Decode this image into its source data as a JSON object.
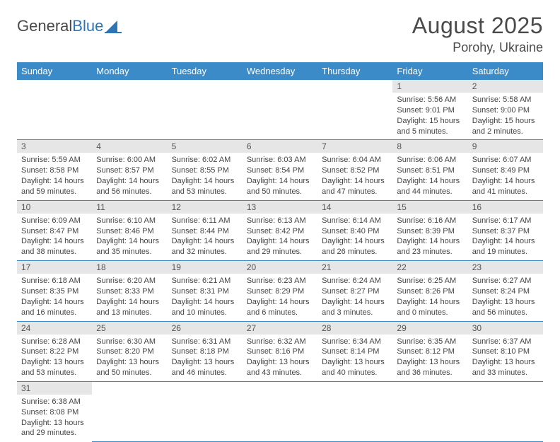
{
  "logo": {
    "part1": "General",
    "part2": "Blue"
  },
  "title": "August 2025",
  "location": "Porohy, Ukraine",
  "colors": {
    "header_bg": "#3b8bc9",
    "header_text": "#ffffff",
    "daynum_bg": "#e6e6e6",
    "border": "#3b8bc9",
    "logo_blue": "#2e75b6",
    "text": "#4a4a4a"
  },
  "weekdays": [
    "Sunday",
    "Monday",
    "Tuesday",
    "Wednesday",
    "Thursday",
    "Friday",
    "Saturday"
  ],
  "weeks": [
    [
      {
        "n": "",
        "sr": "",
        "ss": "",
        "dl": ""
      },
      {
        "n": "",
        "sr": "",
        "ss": "",
        "dl": ""
      },
      {
        "n": "",
        "sr": "",
        "ss": "",
        "dl": ""
      },
      {
        "n": "",
        "sr": "",
        "ss": "",
        "dl": ""
      },
      {
        "n": "",
        "sr": "",
        "ss": "",
        "dl": ""
      },
      {
        "n": "1",
        "sr": "Sunrise: 5:56 AM",
        "ss": "Sunset: 9:01 PM",
        "dl": "Daylight: 15 hours and 5 minutes."
      },
      {
        "n": "2",
        "sr": "Sunrise: 5:58 AM",
        "ss": "Sunset: 9:00 PM",
        "dl": "Daylight: 15 hours and 2 minutes."
      }
    ],
    [
      {
        "n": "3",
        "sr": "Sunrise: 5:59 AM",
        "ss": "Sunset: 8:58 PM",
        "dl": "Daylight: 14 hours and 59 minutes."
      },
      {
        "n": "4",
        "sr": "Sunrise: 6:00 AM",
        "ss": "Sunset: 8:57 PM",
        "dl": "Daylight: 14 hours and 56 minutes."
      },
      {
        "n": "5",
        "sr": "Sunrise: 6:02 AM",
        "ss": "Sunset: 8:55 PM",
        "dl": "Daylight: 14 hours and 53 minutes."
      },
      {
        "n": "6",
        "sr": "Sunrise: 6:03 AM",
        "ss": "Sunset: 8:54 PM",
        "dl": "Daylight: 14 hours and 50 minutes."
      },
      {
        "n": "7",
        "sr": "Sunrise: 6:04 AM",
        "ss": "Sunset: 8:52 PM",
        "dl": "Daylight: 14 hours and 47 minutes."
      },
      {
        "n": "8",
        "sr": "Sunrise: 6:06 AM",
        "ss": "Sunset: 8:51 PM",
        "dl": "Daylight: 14 hours and 44 minutes."
      },
      {
        "n": "9",
        "sr": "Sunrise: 6:07 AM",
        "ss": "Sunset: 8:49 PM",
        "dl": "Daylight: 14 hours and 41 minutes."
      }
    ],
    [
      {
        "n": "10",
        "sr": "Sunrise: 6:09 AM",
        "ss": "Sunset: 8:47 PM",
        "dl": "Daylight: 14 hours and 38 minutes."
      },
      {
        "n": "11",
        "sr": "Sunrise: 6:10 AM",
        "ss": "Sunset: 8:46 PM",
        "dl": "Daylight: 14 hours and 35 minutes."
      },
      {
        "n": "12",
        "sr": "Sunrise: 6:11 AM",
        "ss": "Sunset: 8:44 PM",
        "dl": "Daylight: 14 hours and 32 minutes."
      },
      {
        "n": "13",
        "sr": "Sunrise: 6:13 AM",
        "ss": "Sunset: 8:42 PM",
        "dl": "Daylight: 14 hours and 29 minutes."
      },
      {
        "n": "14",
        "sr": "Sunrise: 6:14 AM",
        "ss": "Sunset: 8:40 PM",
        "dl": "Daylight: 14 hours and 26 minutes."
      },
      {
        "n": "15",
        "sr": "Sunrise: 6:16 AM",
        "ss": "Sunset: 8:39 PM",
        "dl": "Daylight: 14 hours and 23 minutes."
      },
      {
        "n": "16",
        "sr": "Sunrise: 6:17 AM",
        "ss": "Sunset: 8:37 PM",
        "dl": "Daylight: 14 hours and 19 minutes."
      }
    ],
    [
      {
        "n": "17",
        "sr": "Sunrise: 6:18 AM",
        "ss": "Sunset: 8:35 PM",
        "dl": "Daylight: 14 hours and 16 minutes."
      },
      {
        "n": "18",
        "sr": "Sunrise: 6:20 AM",
        "ss": "Sunset: 8:33 PM",
        "dl": "Daylight: 14 hours and 13 minutes."
      },
      {
        "n": "19",
        "sr": "Sunrise: 6:21 AM",
        "ss": "Sunset: 8:31 PM",
        "dl": "Daylight: 14 hours and 10 minutes."
      },
      {
        "n": "20",
        "sr": "Sunrise: 6:23 AM",
        "ss": "Sunset: 8:29 PM",
        "dl": "Daylight: 14 hours and 6 minutes."
      },
      {
        "n": "21",
        "sr": "Sunrise: 6:24 AM",
        "ss": "Sunset: 8:27 PM",
        "dl": "Daylight: 14 hours and 3 minutes."
      },
      {
        "n": "22",
        "sr": "Sunrise: 6:25 AM",
        "ss": "Sunset: 8:26 PM",
        "dl": "Daylight: 14 hours and 0 minutes."
      },
      {
        "n": "23",
        "sr": "Sunrise: 6:27 AM",
        "ss": "Sunset: 8:24 PM",
        "dl": "Daylight: 13 hours and 56 minutes."
      }
    ],
    [
      {
        "n": "24",
        "sr": "Sunrise: 6:28 AM",
        "ss": "Sunset: 8:22 PM",
        "dl": "Daylight: 13 hours and 53 minutes."
      },
      {
        "n": "25",
        "sr": "Sunrise: 6:30 AM",
        "ss": "Sunset: 8:20 PM",
        "dl": "Daylight: 13 hours and 50 minutes."
      },
      {
        "n": "26",
        "sr": "Sunrise: 6:31 AM",
        "ss": "Sunset: 8:18 PM",
        "dl": "Daylight: 13 hours and 46 minutes."
      },
      {
        "n": "27",
        "sr": "Sunrise: 6:32 AM",
        "ss": "Sunset: 8:16 PM",
        "dl": "Daylight: 13 hours and 43 minutes."
      },
      {
        "n": "28",
        "sr": "Sunrise: 6:34 AM",
        "ss": "Sunset: 8:14 PM",
        "dl": "Daylight: 13 hours and 40 minutes."
      },
      {
        "n": "29",
        "sr": "Sunrise: 6:35 AM",
        "ss": "Sunset: 8:12 PM",
        "dl": "Daylight: 13 hours and 36 minutes."
      },
      {
        "n": "30",
        "sr": "Sunrise: 6:37 AM",
        "ss": "Sunset: 8:10 PM",
        "dl": "Daylight: 13 hours and 33 minutes."
      }
    ],
    [
      {
        "n": "31",
        "sr": "Sunrise: 6:38 AM",
        "ss": "Sunset: 8:08 PM",
        "dl": "Daylight: 13 hours and 29 minutes."
      },
      {
        "n": "",
        "sr": "",
        "ss": "",
        "dl": ""
      },
      {
        "n": "",
        "sr": "",
        "ss": "",
        "dl": ""
      },
      {
        "n": "",
        "sr": "",
        "ss": "",
        "dl": ""
      },
      {
        "n": "",
        "sr": "",
        "ss": "",
        "dl": ""
      },
      {
        "n": "",
        "sr": "",
        "ss": "",
        "dl": ""
      },
      {
        "n": "",
        "sr": "",
        "ss": "",
        "dl": ""
      }
    ]
  ]
}
